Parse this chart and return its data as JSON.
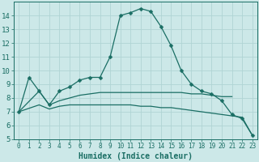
{
  "xlabel": "Humidex (Indice chaleur)",
  "ylabel": "",
  "background_color": "#cce8e8",
  "line_color": "#1a6e64",
  "grid_color": "#b0d4d4",
  "xlim": [
    -0.5,
    23.5
  ],
  "ylim": [
    5,
    15
  ],
  "yticks": [
    5,
    6,
    7,
    8,
    9,
    10,
    11,
    12,
    13,
    14
  ],
  "xticks": [
    0,
    1,
    2,
    3,
    4,
    5,
    6,
    7,
    8,
    9,
    10,
    11,
    12,
    13,
    14,
    15,
    16,
    17,
    18,
    19,
    20,
    21,
    22,
    23
  ],
  "main_x": [
    0,
    1,
    2,
    3,
    4,
    5,
    6,
    7,
    8,
    9,
    10,
    11,
    12,
    13,
    14,
    15,
    16,
    17,
    18,
    19,
    20,
    21,
    22,
    23
  ],
  "main_y": [
    7.0,
    9.5,
    8.5,
    7.5,
    8.5,
    8.8,
    9.3,
    9.5,
    9.5,
    11.0,
    14.0,
    14.2,
    14.5,
    14.3,
    13.2,
    11.8,
    10.0,
    9.0,
    8.5,
    8.3,
    7.8,
    6.8,
    6.5,
    5.3
  ],
  "line2_x": [
    0,
    2,
    3,
    4,
    5,
    6,
    7,
    8,
    9,
    10,
    11,
    12,
    13,
    14,
    15,
    16,
    17,
    18,
    19,
    20,
    21
  ],
  "line2_y": [
    7.0,
    8.5,
    7.5,
    7.8,
    8.0,
    8.2,
    8.3,
    8.4,
    8.4,
    8.4,
    8.4,
    8.4,
    8.4,
    8.4,
    8.4,
    8.4,
    8.3,
    8.3,
    8.2,
    8.1,
    8.1
  ],
  "line3_x": [
    0,
    2,
    3,
    4,
    5,
    6,
    7,
    8,
    9,
    10,
    11,
    12,
    13,
    14,
    15,
    16,
    17,
    18,
    19,
    20,
    21,
    22,
    23
  ],
  "line3_y": [
    7.0,
    7.5,
    7.2,
    7.4,
    7.5,
    7.5,
    7.5,
    7.5,
    7.5,
    7.5,
    7.5,
    7.4,
    7.4,
    7.3,
    7.3,
    7.2,
    7.1,
    7.0,
    6.9,
    6.8,
    6.7,
    6.6,
    5.3
  ],
  "font_color": "#1a6e64",
  "markersize": 2.5,
  "linewidth": 0.9
}
